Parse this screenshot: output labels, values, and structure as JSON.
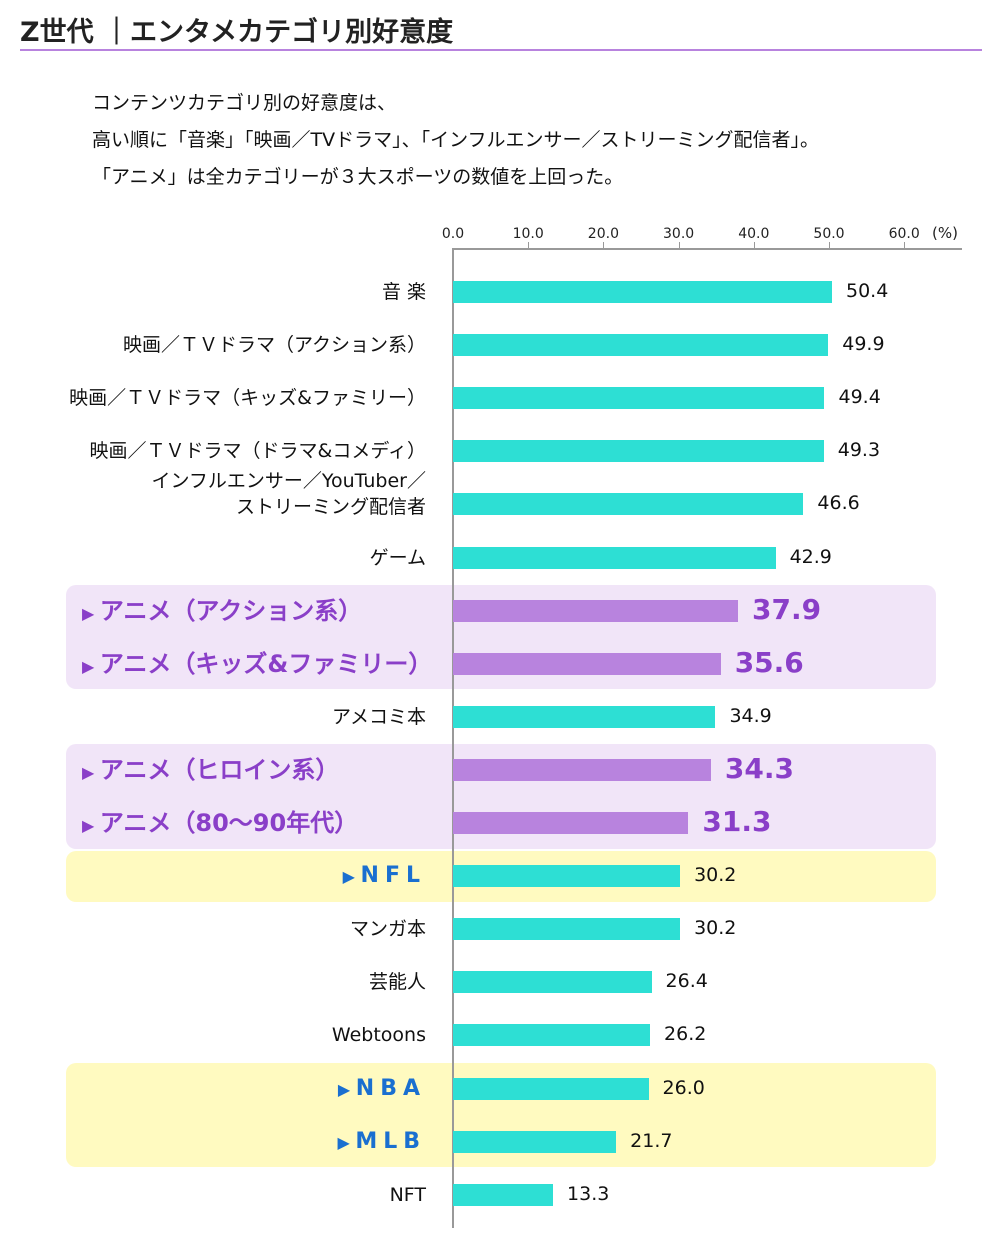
{
  "title": "Z世代 ｜エンタメカテゴリ別好意度",
  "lead": [
    "コンテンツカテゴリ別の好意度は、",
    "高い順に「音楽」「映画／TVドラマ」、「インフルエンサー／ストリーミング配信者」。",
    "「アニメ」は全カテゴリーが３大スポーツの数値を上回った。"
  ],
  "colors": {
    "bar": "#2ddfd4",
    "anime_bar": "#b883de",
    "anime_bg": "#f1e5f8",
    "sport_bg": "#fffac0",
    "anime_text": "#8a3fc8",
    "sport_text": "#1a6fd0",
    "title_rule": "#b883de"
  },
  "chart_data": {
    "type": "bar",
    "orientation": "horizontal",
    "xlim": [
      0,
      60
    ],
    "ticks": [
      "0.0",
      "10.0",
      "20.0",
      "30.0",
      "40.0",
      "50.0",
      "60.0"
    ],
    "unit": "(%)",
    "grid": false,
    "categories": [
      "音 楽",
      "映画／ＴＶドラマ（アクション系）",
      "映画／ＴＶドラマ（キッズ&ファミリー）",
      "映画／ＴＶドラマ（ドラマ&コメディ）",
      "インフルエンサー／YouTuber／\nストリーミング配信者",
      "ゲーム",
      "アニメ（アクション系）",
      "アニメ（キッズ&ファミリー）",
      "アメコミ本",
      "アニメ（ヒロイン系）",
      "アニメ（80〜90年代）",
      "NFL",
      "マンガ本",
      "芸能人",
      "Webtoons",
      "NBA",
      "MLB",
      "NFT"
    ],
    "values": [
      50.4,
      49.9,
      49.4,
      49.3,
      46.6,
      42.9,
      37.9,
      35.6,
      34.9,
      34.3,
      31.3,
      30.2,
      30.2,
      26.4,
      26.2,
      26.0,
      21.7,
      13.3
    ],
    "value_labels": [
      "50.4",
      "49.9",
      "49.4",
      "49.3",
      "46.6",
      "42.9",
      "37.9",
      "35.6",
      "34.9",
      "34.3",
      "31.3",
      "30.2",
      "30.2",
      "26.4",
      "26.2",
      "26.0",
      "21.7",
      "13.3"
    ],
    "highlight": [
      "",
      "",
      "",
      "",
      "",
      "",
      "anime",
      "anime",
      "",
      "anime",
      "anime",
      "sport",
      "",
      "",
      "",
      "sport",
      "sport",
      ""
    ]
  }
}
